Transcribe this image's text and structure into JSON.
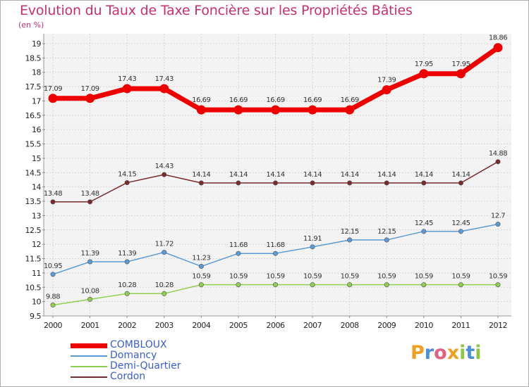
{
  "title": "Evolution du Taux de Taxe Foncière sur les Propriétés Bâties",
  "subtitle": "(en %)",
  "brand": {
    "letters": [
      "P",
      "r",
      "o",
      "x",
      "i",
      "t",
      "i"
    ],
    "colors": [
      "#f0a020",
      "#4a90d9",
      "#e06080",
      "#f0a020",
      "#8dc63f",
      "#4a90d9",
      "#8dc63f"
    ]
  },
  "chart_data": {
    "type": "line",
    "x": [
      "2000",
      "2001",
      "2002",
      "2003",
      "2004",
      "2005",
      "2006",
      "2007",
      "2008",
      "2009",
      "2010",
      "2011",
      "2012"
    ],
    "ylim": [
      9.5,
      19
    ],
    "yticks": [
      "9.5",
      "10",
      "10.5",
      "11",
      "11.5",
      "12",
      "12.5",
      "13",
      "13.5",
      "14",
      "14.5",
      "15",
      "15.5",
      "16",
      "16.5",
      "17",
      "17.5",
      "18",
      "18.5",
      "19"
    ],
    "grid": true,
    "legend_position": "bottom-left",
    "series": [
      {
        "name": "COMBLOUX",
        "color": "#ee0000",
        "values": [
          17.09,
          17.09,
          17.43,
          17.43,
          16.69,
          16.69,
          16.69,
          16.69,
          16.69,
          17.39,
          17.95,
          17.95,
          18.86
        ],
        "labels": [
          "17.09",
          "17.09",
          "17.43",
          "17.43",
          "16.69",
          "16.69",
          "16.69",
          "16.69",
          "16.69",
          "17.39",
          "17.95",
          "17.95",
          "18.86"
        ]
      },
      {
        "name": "Domancy",
        "color": "#5b9bd5",
        "values": [
          10.95,
          11.39,
          11.39,
          11.72,
          11.23,
          11.68,
          11.68,
          11.91,
          12.15,
          12.15,
          12.45,
          12.45,
          12.7
        ],
        "labels": [
          "10.95",
          "11.39",
          "11.39",
          "11.72",
          "11.23",
          "11.68",
          "11.68",
          "11.91",
          "12.15",
          "12.15",
          "12.45",
          "12.45",
          "12.7"
        ]
      },
      {
        "name": "Demi-Quartier",
        "color": "#90d050",
        "values": [
          9.88,
          10.08,
          10.28,
          10.28,
          10.59,
          10.59,
          10.59,
          10.59,
          10.59,
          10.59,
          10.59,
          10.59,
          10.59
        ],
        "labels": [
          "9.88",
          "10.08",
          "10.28",
          "10.28",
          "10.59",
          "10.59",
          "10.59",
          "10.59",
          "10.59",
          "10.59",
          "10.59",
          "10.59",
          "10.59"
        ]
      },
      {
        "name": "Cordon",
        "color": "#7a2a2a",
        "values": [
          13.48,
          13.48,
          14.15,
          14.43,
          14.14,
          14.14,
          14.14,
          14.14,
          14.14,
          14.14,
          14.14,
          14.14,
          14.88
        ],
        "labels": [
          "13.48",
          "13.48",
          "14.15",
          "14.43",
          "14.14",
          "14.14",
          "14.14",
          "14.14",
          "14.14",
          "14.14",
          "14.14",
          "14.14",
          "14.88"
        ]
      }
    ]
  }
}
